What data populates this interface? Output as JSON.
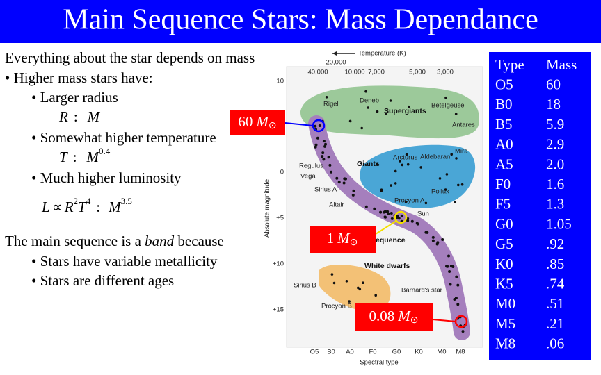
{
  "title": "Main Sequence Stars: Mass Dependance",
  "left": {
    "intro": "Everything about the star depends on mass",
    "bullet": "• Higher mass stars have:",
    "radius": "• Larger radius",
    "radius_formula": [
      "R",
      ":",
      "M"
    ],
    "temperature": "• Somewhat higher temperature",
    "temperature_formula": [
      "T",
      ":",
      "M",
      "0.4"
    ],
    "luminosity": "• Much higher luminosity",
    "luminosity_formula": [
      "L",
      "∝",
      "R",
      "2",
      "T",
      "4",
      ":",
      "M",
      "3.5"
    ],
    "band_sentence": [
      "The main sequence is a ",
      "band",
      " because"
    ],
    "reasons": [
      "• Stars have variable metallicity",
      "• Stars are different ages"
    ]
  },
  "callouts": [
    {
      "value": "60",
      "symbol": "M",
      "sun": "⊙"
    },
    {
      "value": "1",
      "symbol": "M",
      "sun": "⊙"
    },
    {
      "value": "0.08",
      "symbol": "M",
      "sun": "⊙"
    }
  ],
  "hr_diagram": {
    "temperature_label": "Temperature (K)",
    "temperatures": [
      "40,000",
      "20,000",
      "10,000",
      "7,000",
      "5,000",
      "3,000"
    ],
    "magnitude_label": "Absolute magnitude",
    "magnitudes": [
      "−10",
      "0",
      "+5",
      "+10",
      "+15"
    ],
    "spectral_label": "Spectral type",
    "spectral_types": [
      "O5",
      "B0",
      "A0",
      "F0",
      "G0",
      "K0",
      "M0",
      "M8"
    ],
    "regions": [
      "Supergiants",
      "Giants",
      "equence",
      "White dwarfs"
    ],
    "stars": [
      "Rigel",
      "Deneb",
      "Betelgeuse",
      "Antares",
      "Mira",
      "Arcturus",
      "Aldebaran",
      "Regulus",
      "Vega",
      "Sirius A",
      "Pollux",
      "Procyon A",
      "Altair",
      "Sun",
      "Sirius B",
      "Barnard's star",
      "Procyon B"
    ]
  },
  "table": {
    "header": [
      "Type",
      "Mass"
    ],
    "rows": [
      [
        "O5",
        "60"
      ],
      [
        "B0",
        "18"
      ],
      [
        "B5",
        "5.9"
      ],
      [
        "A0",
        "2.9"
      ],
      [
        "A5",
        "2.0"
      ],
      [
        "F0",
        "1.6"
      ],
      [
        "F5",
        "1.3"
      ],
      [
        "G0",
        "1.05"
      ],
      [
        "G5",
        ".92"
      ],
      [
        "K0",
        ".85"
      ],
      [
        "K5",
        ".74"
      ],
      [
        "M0",
        ".51"
      ],
      [
        "M5",
        ".21"
      ],
      [
        "M8",
        ".06"
      ]
    ]
  }
}
